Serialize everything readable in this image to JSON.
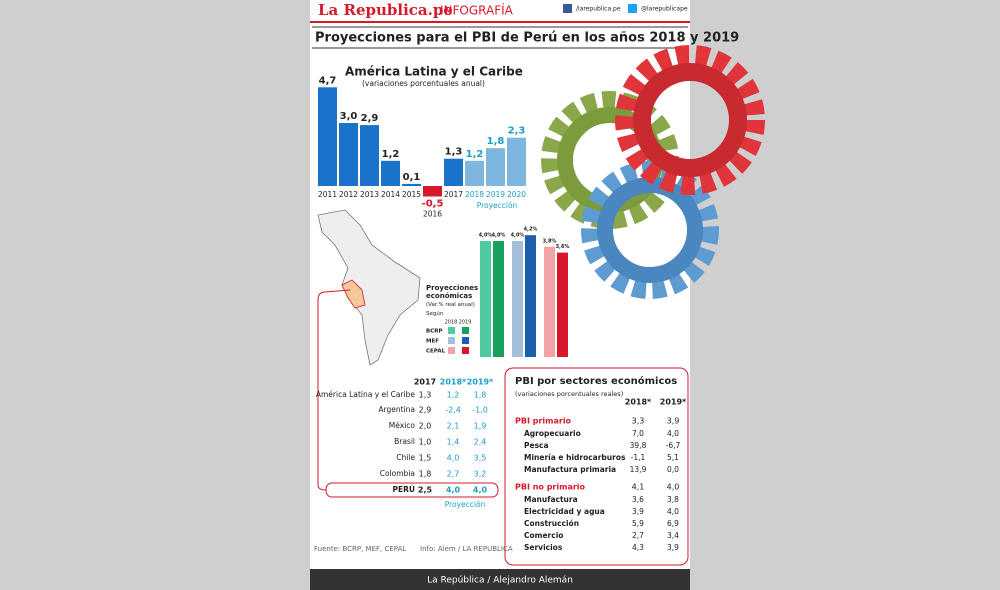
{
  "header": {
    "brand": "La Republica.pe",
    "section": "INFOGRAFÍA",
    "facebook": "/larepublica.pe",
    "twitter": "@larepublicape"
  },
  "title": "Proyecciones para el PBI de Perú en los años 2018 y 2019",
  "chart_data": [
    {
      "type": "bar",
      "title": "América Latina y el Caribe",
      "subtitle": "(variaciones porcentuales anual)",
      "categories": [
        "2011",
        "2012",
        "2013",
        "2014",
        "2015",
        "2016",
        "2017",
        "2018",
        "2019",
        "2020"
      ],
      "values": [
        4.7,
        3.0,
        2.9,
        1.2,
        0.1,
        -0.5,
        1.3,
        1.2,
        1.8,
        2.3
      ],
      "value_labels": [
        "4,7",
        "3,0",
        "2,9",
        "1,2",
        "0,1",
        "-0,5",
        "1,3",
        "1,2",
        "1,8",
        "2,3"
      ],
      "colors": [
        "#1a73c8",
        "#1a73c8",
        "#1a73c8",
        "#1a73c8",
        "#1a73c8",
        "#d7182a",
        "#1a73c8",
        "#7fb6e0",
        "#7fb6e0",
        "#7fb6e0"
      ],
      "annotation": "Proyección"
    },
    {
      "type": "grouped-bar",
      "title": "Proyecciones económicas",
      "subtitle": "(Var.% real anual)",
      "note": "Según",
      "categories": [
        "BCRP",
        "MEF",
        "CEPAL"
      ],
      "series": [
        {
          "name": "2018",
          "colors": [
            "#4fc9a0",
            "#a3bfdc",
            "#f2a3a6"
          ],
          "values": [
            4.0,
            4.0,
            3.8
          ],
          "value_labels": [
            "4,0%",
            "4,0%",
            "3,8%"
          ]
        },
        {
          "name": "2019",
          "colors": [
            "#18a05c",
            "#1c5fae",
            "#d7182a"
          ],
          "values": [
            4.0,
            4.2,
            3.6
          ],
          "value_labels": [
            "4,0%",
            "4,2%",
            "3,6%"
          ]
        }
      ]
    }
  ],
  "country_table": {
    "columns": [
      "2017",
      "2018*",
      "2019*"
    ],
    "rows": [
      [
        "América Latina y el Caribe",
        "1,3",
        "1,2",
        "1,8"
      ],
      [
        "Argentina",
        "2,9",
        "-2,4",
        "-1,0"
      ],
      [
        "México",
        "2,0",
        "2,1",
        "1,9"
      ],
      [
        "Brasil",
        "1,0",
        "1,4",
        "2,4"
      ],
      [
        "Chile",
        "1,5",
        "4,0",
        "3,5"
      ],
      [
        "Colombia",
        "1,8",
        "2,7",
        "3,2"
      ],
      [
        "PERÚ",
        "2,5",
        "4,0",
        "4,0"
      ]
    ],
    "note": "Proyección"
  },
  "sector_table": {
    "title": "PBI por sectores económicos",
    "subtitle": "(variaciones porcentuales reales)",
    "columns": [
      "2018*",
      "2019*"
    ],
    "groups": [
      {
        "label": "PBI primario",
        "values": [
          "3,3",
          "3,9"
        ],
        "rows": [
          [
            "Agropecuario",
            "7,0",
            "4,0"
          ],
          [
            "Pesca",
            "39,8",
            "-6,7"
          ],
          [
            "Minería e hidrocarburos",
            "-1,1",
            "5,1"
          ],
          [
            "Manufactura primaria",
            "13,9",
            "0,0"
          ]
        ]
      },
      {
        "label": "PBI no primario",
        "values": [
          "4,1",
          "4,0"
        ],
        "rows": [
          [
            "Manufactura",
            "3,6",
            "3,8"
          ],
          [
            "Electricidad y agua",
            "3,9",
            "4,0"
          ],
          [
            "Construcción",
            "5,9",
            "6,9"
          ],
          [
            "Comercio",
            "2,7",
            "3,4"
          ],
          [
            "Servicios",
            "4,3",
            "3,9"
          ]
        ]
      }
    ]
  },
  "footer": {
    "source": "Fuente: BCRP, MEF, CEPAL",
    "info": "Info: Alem / LA REPUBLICA",
    "credit": "La República / Alejandro Alemán"
  }
}
